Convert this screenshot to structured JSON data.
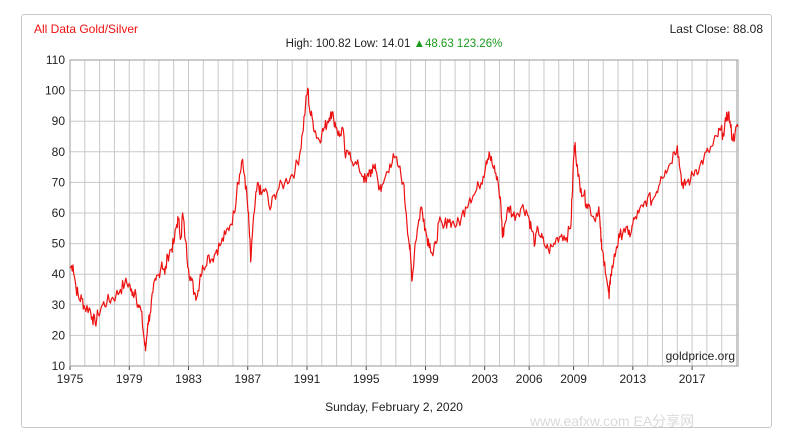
{
  "header": {
    "title": "All Data Gold/Silver",
    "last_close": "Last Close: 88.08",
    "high_low": "High: 100.82 Low: 14.01",
    "change": "▲48.63 123.26%"
  },
  "footer": {
    "date": "Sunday, February 2, 2020",
    "watermark": "www.eafxw.com  EA分享网"
  },
  "colors": {
    "line": "#ee1111",
    "grid": "#c8c8c8",
    "axis": "#444444",
    "up": "#1a9a1a"
  },
  "chart_data": {
    "type": "line",
    "title": "All Data Gold/Silver",
    "xlabel": "",
    "ylabel": "",
    "xlim": [
      1975,
      2020.1
    ],
    "ylim": [
      10,
      110
    ],
    "yticks": [
      10,
      20,
      30,
      40,
      50,
      60,
      70,
      80,
      90,
      100,
      110
    ],
    "xticks": [
      1975,
      1979,
      1983,
      1987,
      1991,
      1995,
      1999,
      2003,
      2006,
      2009,
      2013,
      2017
    ],
    "grid": true,
    "annotation": "goldprice.org",
    "series": [
      {
        "values": [
          [
            1975.0,
            42
          ],
          [
            1975.2,
            43
          ],
          [
            1975.4,
            36
          ],
          [
            1975.6,
            32
          ],
          [
            1975.8,
            32
          ],
          [
            1976.0,
            29
          ],
          [
            1976.3,
            29
          ],
          [
            1976.5,
            26
          ],
          [
            1976.7,
            24
          ],
          [
            1976.9,
            27
          ],
          [
            1977.2,
            30
          ],
          [
            1977.5,
            31
          ],
          [
            1977.8,
            32
          ],
          [
            1978.1,
            33
          ],
          [
            1978.4,
            35
          ],
          [
            1978.7,
            37
          ],
          [
            1979.0,
            37
          ],
          [
            1979.2,
            33
          ],
          [
            1979.4,
            35
          ],
          [
            1979.6,
            30
          ],
          [
            1979.8,
            28
          ],
          [
            1980.0,
            19
          ],
          [
            1980.1,
            15
          ],
          [
            1980.25,
            24
          ],
          [
            1980.4,
            27
          ],
          [
            1980.6,
            34
          ],
          [
            1980.8,
            38
          ],
          [
            1981.0,
            40
          ],
          [
            1981.2,
            44
          ],
          [
            1981.4,
            40
          ],
          [
            1981.6,
            46
          ],
          [
            1981.8,
            48
          ],
          [
            1982.0,
            50
          ],
          [
            1982.2,
            56
          ],
          [
            1982.3,
            58
          ],
          [
            1982.5,
            52
          ],
          [
            1982.6,
            60
          ],
          [
            1982.8,
            51
          ],
          [
            1983.0,
            42
          ],
          [
            1983.2,
            38
          ],
          [
            1983.4,
            34
          ],
          [
            1983.6,
            33
          ],
          [
            1983.8,
            40
          ],
          [
            1984.0,
            42
          ],
          [
            1984.3,
            46
          ],
          [
            1984.6,
            45
          ],
          [
            1984.9,
            48
          ],
          [
            1985.2,
            50
          ],
          [
            1985.5,
            53
          ],
          [
            1985.8,
            56
          ],
          [
            1986.1,
            60
          ],
          [
            1986.3,
            70
          ],
          [
            1986.5,
            73
          ],
          [
            1986.6,
            77
          ],
          [
            1986.8,
            72
          ],
          [
            1987.0,
            62
          ],
          [
            1987.1,
            55
          ],
          [
            1987.2,
            44
          ],
          [
            1987.3,
            52
          ],
          [
            1987.5,
            63
          ],
          [
            1987.7,
            70
          ],
          [
            1987.9,
            66
          ],
          [
            1988.2,
            68
          ],
          [
            1988.5,
            61
          ],
          [
            1988.8,
            66
          ],
          [
            1989.1,
            68
          ],
          [
            1989.5,
            70
          ],
          [
            1989.9,
            72
          ],
          [
            1990.2,
            74
          ],
          [
            1990.5,
            79
          ],
          [
            1990.7,
            86
          ],
          [
            1990.9,
            95
          ],
          [
            1991.05,
            100.8
          ],
          [
            1991.2,
            93
          ],
          [
            1991.4,
            90
          ],
          [
            1991.6,
            86
          ],
          [
            1991.8,
            84
          ],
          [
            1992.0,
            86
          ],
          [
            1992.2,
            88
          ],
          [
            1992.4,
            90
          ],
          [
            1992.6,
            93
          ],
          [
            1992.8,
            91
          ],
          [
            1993.0,
            88
          ],
          [
            1993.2,
            85
          ],
          [
            1993.4,
            88
          ],
          [
            1993.6,
            78
          ],
          [
            1993.9,
            80
          ],
          [
            1994.2,
            76
          ],
          [
            1994.5,
            75
          ],
          [
            1994.8,
            72
          ],
          [
            1995.0,
            70
          ],
          [
            1995.2,
            74
          ],
          [
            1995.4,
            73
          ],
          [
            1995.6,
            76
          ],
          [
            1995.8,
            70
          ],
          [
            1996.0,
            67
          ],
          [
            1996.3,
            72
          ],
          [
            1996.6,
            76
          ],
          [
            1996.9,
            78
          ],
          [
            1997.2,
            75
          ],
          [
            1997.5,
            70
          ],
          [
            1997.7,
            60
          ],
          [
            1997.9,
            50
          ],
          [
            1998.0,
            45
          ],
          [
            1998.1,
            38
          ],
          [
            1998.3,
            50
          ],
          [
            1998.5,
            56
          ],
          [
            1998.7,
            62
          ],
          [
            1998.9,
            58
          ],
          [
            1999.1,
            52
          ],
          [
            1999.3,
            50
          ],
          [
            1999.5,
            46
          ],
          [
            1999.7,
            50
          ],
          [
            1999.9,
            57
          ],
          [
            2000.2,
            55
          ],
          [
            2000.5,
            58
          ],
          [
            2000.8,
            57
          ],
          [
            2001.1,
            56
          ],
          [
            2001.4,
            58
          ],
          [
            2001.7,
            62
          ],
          [
            2002.0,
            65
          ],
          [
            2002.3,
            66
          ],
          [
            2002.6,
            69
          ],
          [
            2002.9,
            72
          ],
          [
            2003.1,
            77
          ],
          [
            2003.3,
            80
          ],
          [
            2003.5,
            76
          ],
          [
            2003.7,
            73
          ],
          [
            2003.9,
            70
          ],
          [
            2004.1,
            62
          ],
          [
            2004.2,
            52
          ],
          [
            2004.3,
            55
          ],
          [
            2004.5,
            60
          ],
          [
            2004.7,
            62
          ],
          [
            2004.9,
            59
          ],
          [
            2005.2,
            60
          ],
          [
            2005.5,
            62
          ],
          [
            2005.8,
            61
          ],
          [
            2006.0,
            58
          ],
          [
            2006.2,
            54
          ],
          [
            2006.4,
            50
          ],
          [
            2006.6,
            55
          ],
          [
            2006.8,
            52
          ],
          [
            2007.0,
            50
          ],
          [
            2007.3,
            48
          ],
          [
            2007.6,
            49
          ],
          [
            2007.9,
            52
          ],
          [
            2008.2,
            53
          ],
          [
            2008.5,
            52
          ],
          [
            2008.8,
            55
          ],
          [
            2008.9,
            65
          ],
          [
            2009.0,
            78
          ],
          [
            2009.1,
            83
          ],
          [
            2009.3,
            72
          ],
          [
            2009.5,
            68
          ],
          [
            2009.7,
            66
          ],
          [
            2009.9,
            63
          ],
          [
            2010.1,
            62
          ],
          [
            2010.4,
            58
          ],
          [
            2010.7,
            62
          ],
          [
            2010.8,
            55
          ],
          [
            2010.9,
            48
          ],
          [
            2011.1,
            44
          ],
          [
            2011.3,
            36
          ],
          [
            2011.4,
            32
          ],
          [
            2011.5,
            40
          ],
          [
            2011.7,
            44
          ],
          [
            2011.9,
            49
          ],
          [
            2012.1,
            52
          ],
          [
            2012.4,
            55
          ],
          [
            2012.7,
            53
          ],
          [
            2012.9,
            54
          ],
          [
            2013.1,
            58
          ],
          [
            2013.4,
            60
          ],
          [
            2013.7,
            62
          ],
          [
            2014.0,
            65
          ],
          [
            2014.3,
            64
          ],
          [
            2014.6,
            67
          ],
          [
            2014.9,
            72
          ],
          [
            2015.2,
            74
          ],
          [
            2015.5,
            76
          ],
          [
            2015.8,
            80
          ],
          [
            2016.0,
            82
          ],
          [
            2016.2,
            74
          ],
          [
            2016.4,
            68
          ],
          [
            2016.6,
            70
          ],
          [
            2016.9,
            71
          ],
          [
            2017.2,
            74
          ],
          [
            2017.5,
            75
          ],
          [
            2017.8,
            78
          ],
          [
            2018.1,
            80
          ],
          [
            2018.4,
            82
          ],
          [
            2018.7,
            85
          ],
          [
            2018.9,
            87
          ],
          [
            2019.1,
            86
          ],
          [
            2019.3,
            90
          ],
          [
            2019.45,
            93
          ],
          [
            2019.6,
            88
          ],
          [
            2019.75,
            84
          ],
          [
            2019.9,
            86
          ],
          [
            2020.1,
            88.08
          ]
        ]
      }
    ]
  }
}
